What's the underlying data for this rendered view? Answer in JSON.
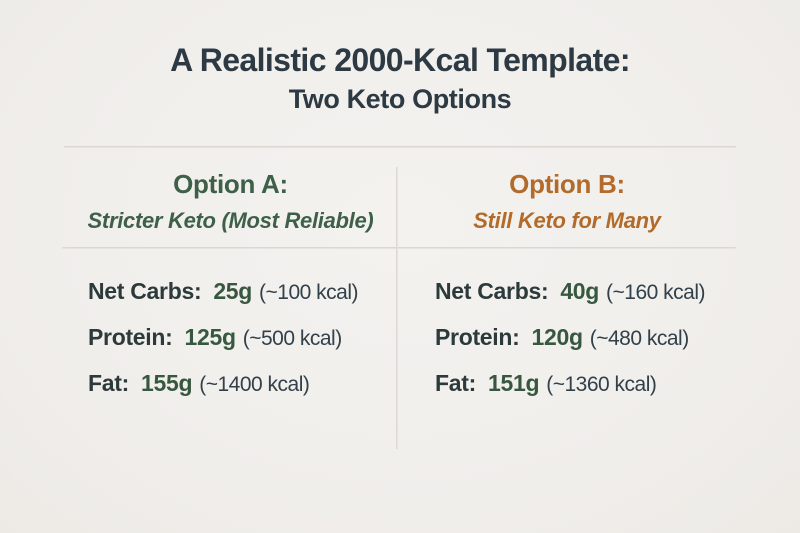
{
  "header": {
    "title_line1": "A Realistic 2000-Kcal Template:",
    "title_line2": "Two Keto Options"
  },
  "colors": {
    "background": "#f1efec",
    "title": "#2d3a43",
    "label": "#2c3a3b",
    "note": "#31404a",
    "divider": "#d8d4ce",
    "value_green": "#37583f",
    "option_a_accent": "#3e6049",
    "option_b_accent": "#b26b2a"
  },
  "columns": [
    {
      "heading": "Option A:",
      "subheading": "Stricter Keto (Most Reliable)",
      "accent": "#3e6049",
      "rows": [
        {
          "label": "Net Carbs:",
          "value": "25g",
          "note": "(~100 kcal)"
        },
        {
          "label": "Protein:",
          "value": "125g",
          "note": "(~500 kcal)"
        },
        {
          "label": "Fat:",
          "value": "155g",
          "note": "(~1400 kcal)"
        }
      ]
    },
    {
      "heading": "Option B:",
      "subheading": "Still Keto for Many",
      "accent": "#b26b2a",
      "rows": [
        {
          "label": "Net Carbs:",
          "value": "40g",
          "note": "(~160 kcal)"
        },
        {
          "label": "Protein:",
          "value": "120g",
          "note": "(~480 kcal)"
        },
        {
          "label": "Fat:",
          "value": "151g",
          "note": "(~1360 kcal)"
        }
      ]
    }
  ]
}
